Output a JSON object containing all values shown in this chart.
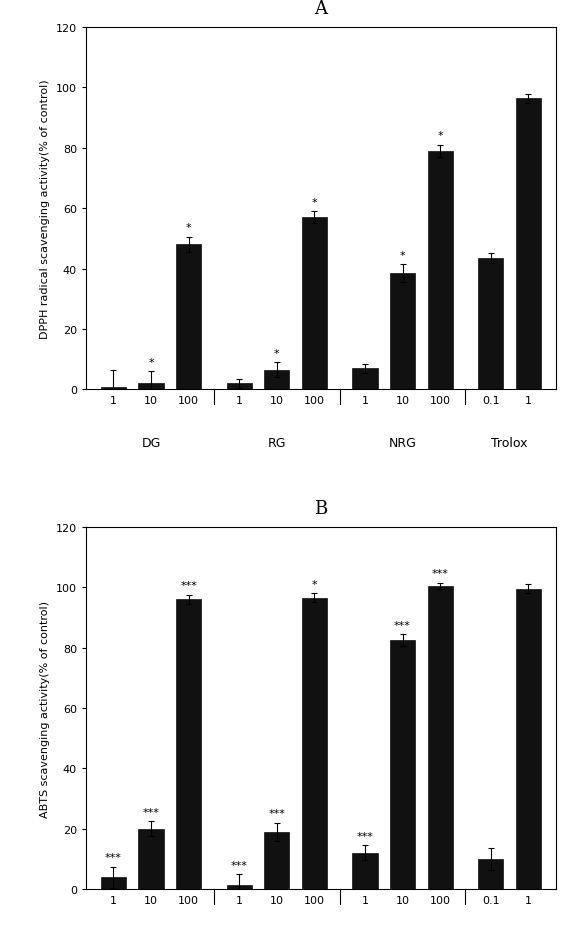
{
  "panel_A": {
    "title": "A",
    "ylabel": "DPPH radical scavenging activity(% of control)",
    "ylim": [
      0,
      120
    ],
    "yticks": [
      0,
      20,
      40,
      60,
      80,
      100,
      120
    ],
    "groups": [
      "DG",
      "RG",
      "NRG",
      "Trolox"
    ],
    "group_labels": [
      [
        "1",
        "10",
        "100"
      ],
      [
        "1",
        "10",
        "100"
      ],
      [
        "1",
        "10",
        "100"
      ],
      [
        "0.1",
        "1"
      ]
    ],
    "counts": [
      3,
      3,
      3,
      2
    ],
    "values": [
      0.8,
      2.0,
      48.0,
      2.0,
      6.5,
      57.0,
      7.0,
      38.5,
      79.0,
      43.5,
      96.5
    ],
    "errors": [
      5.5,
      4.0,
      2.5,
      1.5,
      2.5,
      2.0,
      1.5,
      3.0,
      2.0,
      1.5,
      1.5
    ],
    "significance": [
      "",
      "*",
      "*",
      "",
      "*",
      "*",
      "",
      "*",
      "*",
      "",
      ""
    ],
    "bar_color": "#111111"
  },
  "panel_B": {
    "title": "B",
    "ylabel": "ABTS scavenging activity(% of control)",
    "ylim": [
      0,
      120
    ],
    "yticks": [
      0,
      20,
      40,
      60,
      80,
      100,
      120
    ],
    "groups": [
      "DG",
      "RG",
      "NRG",
      "Trolox"
    ],
    "group_labels": [
      [
        "1",
        "10",
        "100"
      ],
      [
        "1",
        "10",
        "100"
      ],
      [
        "1",
        "10",
        "100"
      ],
      [
        "0.1",
        "1"
      ]
    ],
    "counts": [
      3,
      3,
      3,
      2
    ],
    "values": [
      4.0,
      20.0,
      96.0,
      1.5,
      19.0,
      96.5,
      12.0,
      82.5,
      100.5,
      10.0,
      99.5
    ],
    "errors": [
      3.5,
      2.5,
      1.5,
      3.5,
      3.0,
      1.5,
      2.5,
      2.0,
      1.0,
      3.5,
      1.5
    ],
    "significance": [
      "***",
      "***",
      "***",
      "***",
      "***",
      "*",
      "***",
      "***",
      "***",
      "",
      ""
    ],
    "bar_color": "#111111"
  },
  "background_color": "#ffffff",
  "plot_background": "#ffffff",
  "font_size_title": 13,
  "font_size_label": 8,
  "font_size_tick": 8,
  "font_size_sig": 8,
  "font_size_group": 9
}
